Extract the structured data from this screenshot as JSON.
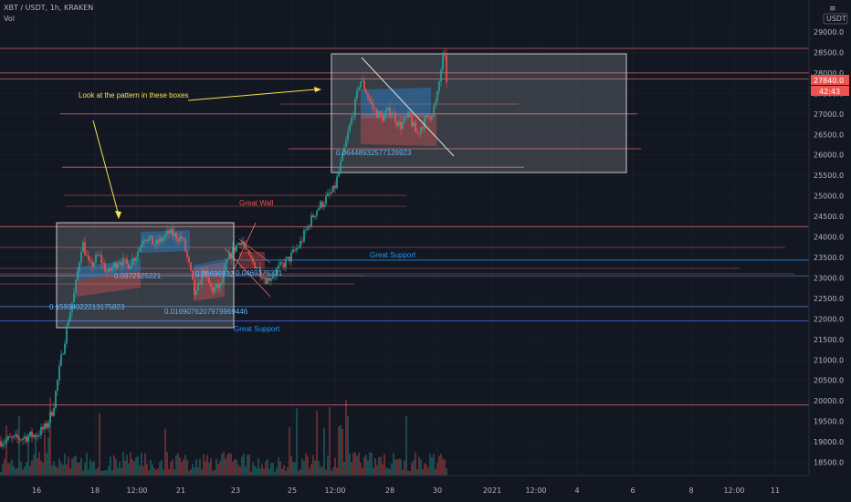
{
  "header": {
    "symbol_line": "XBT / USDT, 1h, KRAKEN",
    "indicator": "Vol"
  },
  "colors": {
    "background": "#131722",
    "up": "#26a69a",
    "down": "#ef5350",
    "grid": "#1e2230",
    "text": "#b2b5be",
    "annotation_yellow": "#f7e24b",
    "annotation_blue": "#2196f3",
    "annotation_red": "#ef5350"
  },
  "chart_data": {
    "type": "candlestick",
    "title": "XBT / USDT, 1h, KRAKEN",
    "currency": "USDT",
    "ylim": [
      17900,
      29400
    ],
    "y_ticks": [
      "29000.0",
      "28500.0",
      "28000.0",
      "27500.0",
      "27000.0",
      "26500.0",
      "26000.0",
      "25500.0",
      "25000.0",
      "24500.0",
      "24000.0",
      "23500.0",
      "23000.0",
      "22500.0",
      "22000.0",
      "21500.0",
      "21000.0",
      "20500.0",
      "20000.0",
      "19500.0",
      "19000.0",
      "18500.0",
      "18000.0"
    ],
    "x_ticks": [
      "16",
      "18",
      "12:00",
      "21",
      "23",
      "25",
      "12:00",
      "28",
      "30",
      "2021",
      "12:00",
      "4",
      "6",
      "8",
      "12:00",
      "11"
    ],
    "last_price": "27840.0",
    "countdown": "42:43",
    "price_path": [
      [
        0,
        19020
      ],
      [
        20,
        19080
      ],
      [
        40,
        19180
      ],
      [
        50,
        19350
      ],
      [
        58,
        19800
      ],
      [
        66,
        20900
      ],
      [
        74,
        21900
      ],
      [
        82,
        22700
      ],
      [
        90,
        23900
      ],
      [
        98,
        23250
      ],
      [
        108,
        23550
      ],
      [
        118,
        23100
      ],
      [
        130,
        23450
      ],
      [
        140,
        23300
      ],
      [
        150,
        23600
      ],
      [
        158,
        24050
      ],
      [
        170,
        23800
      ],
      [
        185,
        24100
      ],
      [
        200,
        23950
      ],
      [
        208,
        23200
      ],
      [
        214,
        22500
      ],
      [
        222,
        23200
      ],
      [
        232,
        22700
      ],
      [
        242,
        22800
      ],
      [
        248,
        23350
      ],
      [
        256,
        23700
      ],
      [
        264,
        23950
      ],
      [
        272,
        23500
      ],
      [
        282,
        23250
      ],
      [
        292,
        22950
      ],
      [
        304,
        23200
      ],
      [
        316,
        23450
      ],
      [
        328,
        23800
      ],
      [
        338,
        24300
      ],
      [
        346,
        24650
      ],
      [
        356,
        24900
      ],
      [
        366,
        25150
      ],
      [
        374,
        25850
      ],
      [
        382,
        26600
      ],
      [
        390,
        27350
      ],
      [
        394,
        27850
      ],
      [
        398,
        27700
      ],
      [
        408,
        27150
      ],
      [
        418,
        26900
      ],
      [
        428,
        27100
      ],
      [
        438,
        26700
      ],
      [
        448,
        26950
      ],
      [
        456,
        26500
      ],
      [
        464,
        26800
      ],
      [
        472,
        27000
      ],
      [
        478,
        27300
      ],
      [
        484,
        28250
      ],
      [
        486,
        28550
      ],
      [
        489,
        27840
      ]
    ],
    "volume_scale_max": 100
  },
  "annotations": {
    "pattern_note": "Look at the pattern in these boxes",
    "great_wall": "Great Wall",
    "great_support_1": "Great Support",
    "great_support_2": "Great Support",
    "fib_1": "0.15934022213175823",
    "fib_2": "0.0169076207979969446",
    "fib_3": "0.06448932577126923",
    "fib_small_1": "0.0972925221",
    "fib_small_2": "0.00696932",
    "fib_small_3": "0.0469379331"
  },
  "lines": {
    "red_levels": [
      28600,
      28000,
      27850,
      27000,
      26150,
      25700,
      24250,
      19900
    ],
    "support_levels": [
      23050,
      22300,
      21950
    ]
  }
}
